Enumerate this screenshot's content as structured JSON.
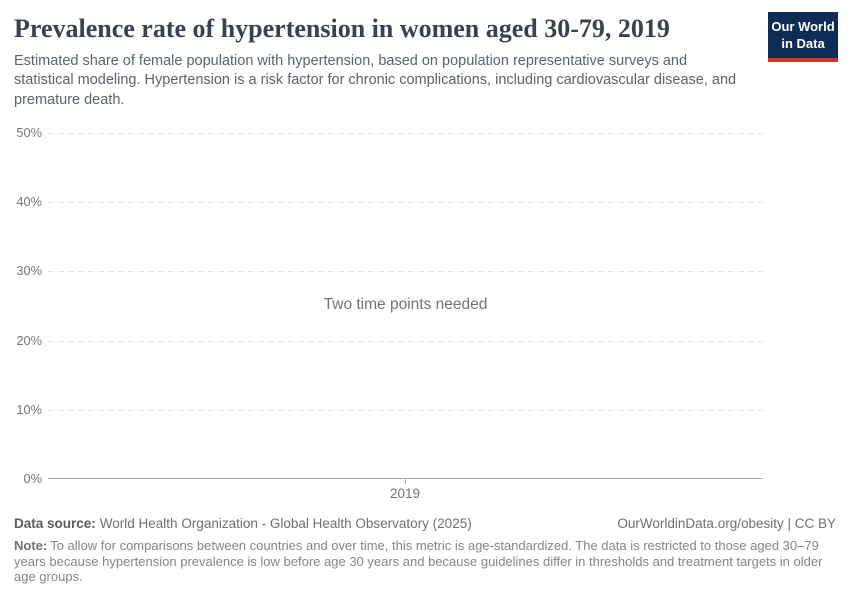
{
  "header": {
    "title": "Prevalence rate of hypertension in women aged 30-79, 2019",
    "subtitle": "Estimated share of female population with hypertension, based on population representative surveys and statistical modeling. Hypertension is a risk factor for chronic complications, including cardiovascular disease, and premature death.",
    "logo": {
      "line1": "Our World",
      "line2": "in Data",
      "background_color": "#0f2c55",
      "accent_color": "#d0352b"
    }
  },
  "chart_data": {
    "type": "line",
    "title": "Prevalence rate of hypertension in women aged 30-79, 2019",
    "series": [],
    "empty_state_message": "Two time points needed",
    "x_ticks": [
      "2019"
    ],
    "y_ticks": [
      "0%",
      "10%",
      "20%",
      "30%",
      "40%",
      "50%"
    ],
    "ylim": [
      0,
      50
    ],
    "xlabel": "",
    "ylabel": "",
    "grid": "horizontal-dashed",
    "legend": "none",
    "gridline_color": "#dfe3e6",
    "axis_color": "#a8adb2"
  },
  "footer": {
    "datasource_label": "Data source:",
    "datasource_value": "World Health Organization - Global Health Observatory (2025)",
    "attribution": "OurWorldinData.org/obesity | CC BY",
    "note_label": "Note:",
    "note_value": "To allow for comparisons between countries and over time, this metric is age-standardized. The data is restricted to those aged 30–79 years because hypertension prevalence is low before age 30 years and because guidelines differ in thresholds and treatment targets in older age groups."
  }
}
